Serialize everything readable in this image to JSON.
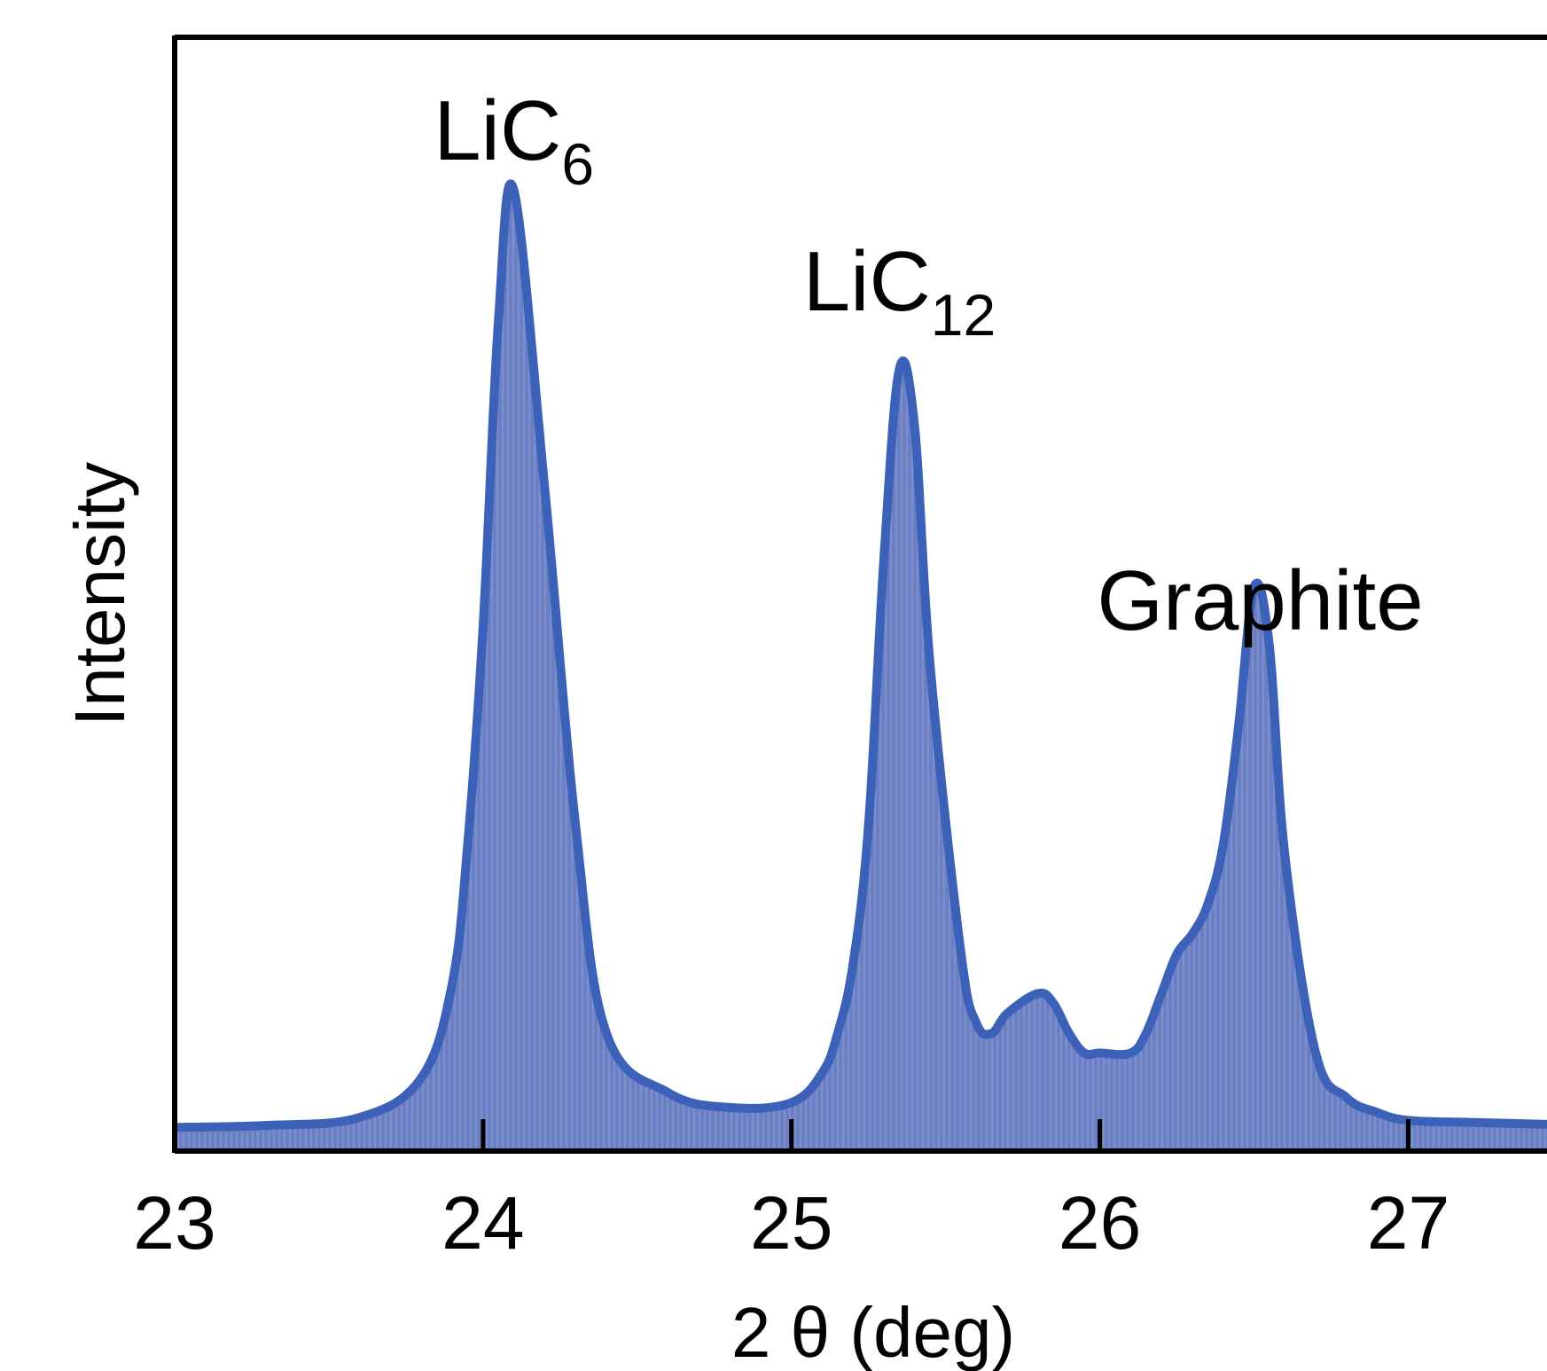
{
  "chart_data": {
    "type": "area",
    "title": "",
    "xlabel": "2 θ (deg)",
    "ylabel": "Intensity",
    "xlim": [
      23,
      27.45
    ],
    "ylim": [
      0,
      1.0
    ],
    "x_ticks": [
      "23",
      "24",
      "25",
      "26",
      "27"
    ],
    "y_ticks_shown": false,
    "grid": false,
    "legend": "none",
    "colors": {
      "line": "#3b61b8",
      "fill": "#6a7fc4",
      "axis": "#000000"
    },
    "annotations": [
      {
        "x": 24.1,
        "base": "LiC",
        "sub": "6"
      },
      {
        "x": 25.35,
        "base": "LiC",
        "sub": "12"
      },
      {
        "x": 26.52,
        "text": "Graphite"
      }
    ],
    "series": [
      {
        "x": [
          23.0,
          23.3,
          23.6,
          23.8,
          23.9,
          23.95,
          24.0,
          24.05,
          24.1,
          24.2,
          24.3,
          24.4,
          24.6,
          24.8,
          25.0,
          25.1,
          25.15,
          25.2,
          25.25,
          25.3,
          25.35,
          25.4,
          25.45,
          25.55,
          25.6,
          25.65,
          25.7,
          25.8,
          25.85,
          25.9,
          25.95,
          26.0,
          26.1,
          26.15,
          26.2,
          26.25,
          26.3,
          26.35,
          26.4,
          26.45,
          26.5,
          26.55,
          26.6,
          26.7,
          26.8,
          26.9,
          27.0,
          27.2,
          27.45
        ],
        "y": [
          0.015,
          0.017,
          0.025,
          0.065,
          0.16,
          0.3,
          0.52,
          0.83,
          0.96,
          0.66,
          0.32,
          0.11,
          0.05,
          0.035,
          0.04,
          0.07,
          0.11,
          0.18,
          0.32,
          0.59,
          0.78,
          0.72,
          0.48,
          0.19,
          0.12,
          0.11,
          0.13,
          0.15,
          0.14,
          0.11,
          0.09,
          0.09,
          0.09,
          0.11,
          0.15,
          0.19,
          0.21,
          0.24,
          0.3,
          0.42,
          0.56,
          0.5,
          0.29,
          0.09,
          0.045,
          0.03,
          0.022,
          0.02,
          0.018
        ]
      }
    ]
  }
}
